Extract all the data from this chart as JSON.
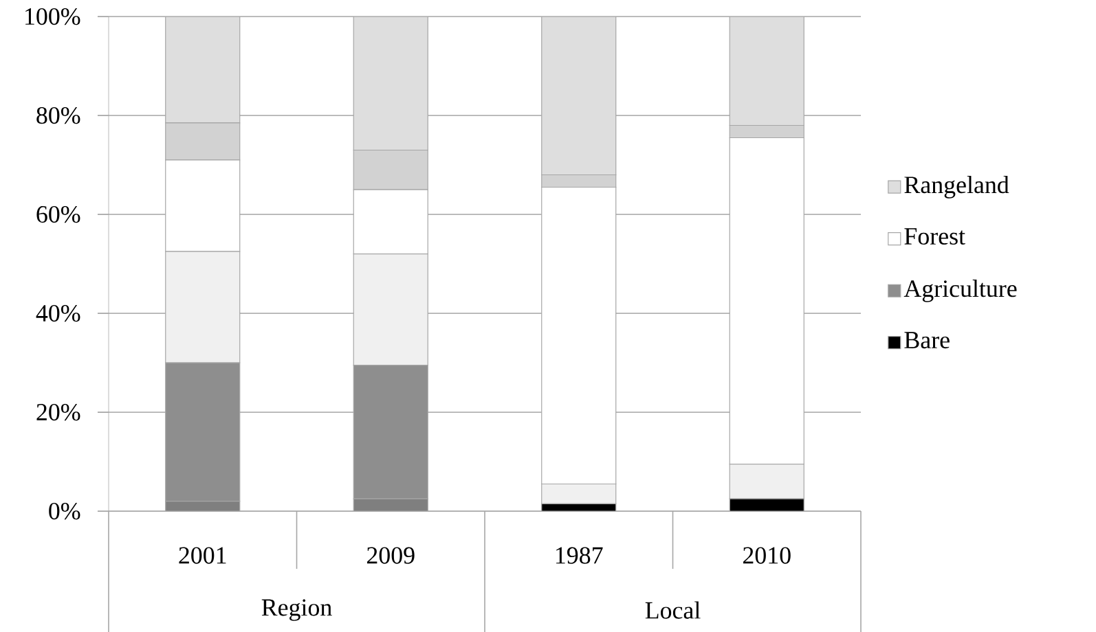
{
  "chart_data": {
    "type": "bar",
    "stacked": true,
    "categories": [
      "2001",
      "2009",
      "1987",
      "2010"
    ],
    "series": [
      {
        "name": "Bare",
        "color": "#000000",
        "values": [
          0,
          0,
          1.5,
          2.5
        ]
      },
      {
        "color": "#7f7f7f",
        "values": [
          2,
          2.5,
          0,
          0
        ]
      },
      {
        "name": "Agriculture",
        "color": "#8e8e8e",
        "values": [
          28,
          27,
          0,
          0
        ]
      },
      {
        "color": "#f0f0f0",
        "values": [
          22.5,
          22.5,
          4,
          7
        ]
      },
      {
        "name": "Forest",
        "color": "#ffffff",
        "values": [
          18.5,
          13,
          60,
          66
        ]
      },
      {
        "color": "#d2d2d2",
        "values": [
          7.5,
          8,
          2.5,
          2.5
        ]
      },
      {
        "name": "Rangeland",
        "color": "#dedede",
        "values": [
          21.5,
          27,
          32,
          22
        ]
      }
    ],
    "ylim": [
      0,
      100
    ],
    "yticks": [
      {
        "value": 0,
        "label": "0%"
      },
      {
        "value": 20,
        "label": "20%"
      },
      {
        "value": 40,
        "label": "40%"
      },
      {
        "value": 60,
        "label": "60%"
      },
      {
        "value": 80,
        "label": "80%"
      },
      {
        "value": 100,
        "label": "100%"
      }
    ],
    "grid": "y",
    "legend": "right",
    "annotations": [
      "Region",
      "Local"
    ]
  }
}
